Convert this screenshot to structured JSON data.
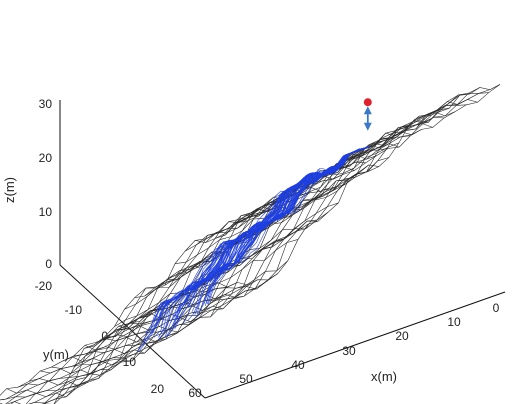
{
  "colors": {
    "surface": "#2b2b2b",
    "trajectories": "#1f3fe0",
    "goal_marker": "#e0202a",
    "goal_arrow": "#3a78c8",
    "axes": "#111111"
  },
  "chart_data": {
    "type": "surface",
    "title": "",
    "xlabel": "x(m)",
    "ylabel": "y(m)",
    "zlabel": "z(m)",
    "xlim": [
      0,
      60
    ],
    "ylim": [
      -20,
      20
    ],
    "zlim": [
      0,
      30
    ],
    "x_ticks": [
      "0",
      "10",
      "20",
      "30",
      "40",
      "50",
      "60"
    ],
    "y_ticks": [
      "-20",
      "-10",
      "0",
      "10",
      "20"
    ],
    "z_ticks": [
      "0",
      "10",
      "20",
      "30"
    ],
    "grid": false,
    "series": [
      {
        "kind": "terrain-mesh",
        "description_values": {
          "x_range": [
            0,
            60
          ],
          "y_range": [
            -20,
            20
          ],
          "terraces_z": [
            0,
            10,
            18,
            26
          ],
          "terrace_edges_x": [
            42,
            34,
            24,
            14
          ]
        }
      },
      {
        "kind": "trajectories",
        "start_region": {
          "x": [
            38,
            44
          ],
          "y": [
            -6,
            6
          ],
          "z": [
            0,
            1
          ]
        },
        "end_point": {
          "x": 4,
          "y": 0,
          "z": 31
        }
      },
      {
        "kind": "goal-marker",
        "point": {
          "x": 4,
          "y": 0,
          "z": 38
        }
      }
    ]
  }
}
